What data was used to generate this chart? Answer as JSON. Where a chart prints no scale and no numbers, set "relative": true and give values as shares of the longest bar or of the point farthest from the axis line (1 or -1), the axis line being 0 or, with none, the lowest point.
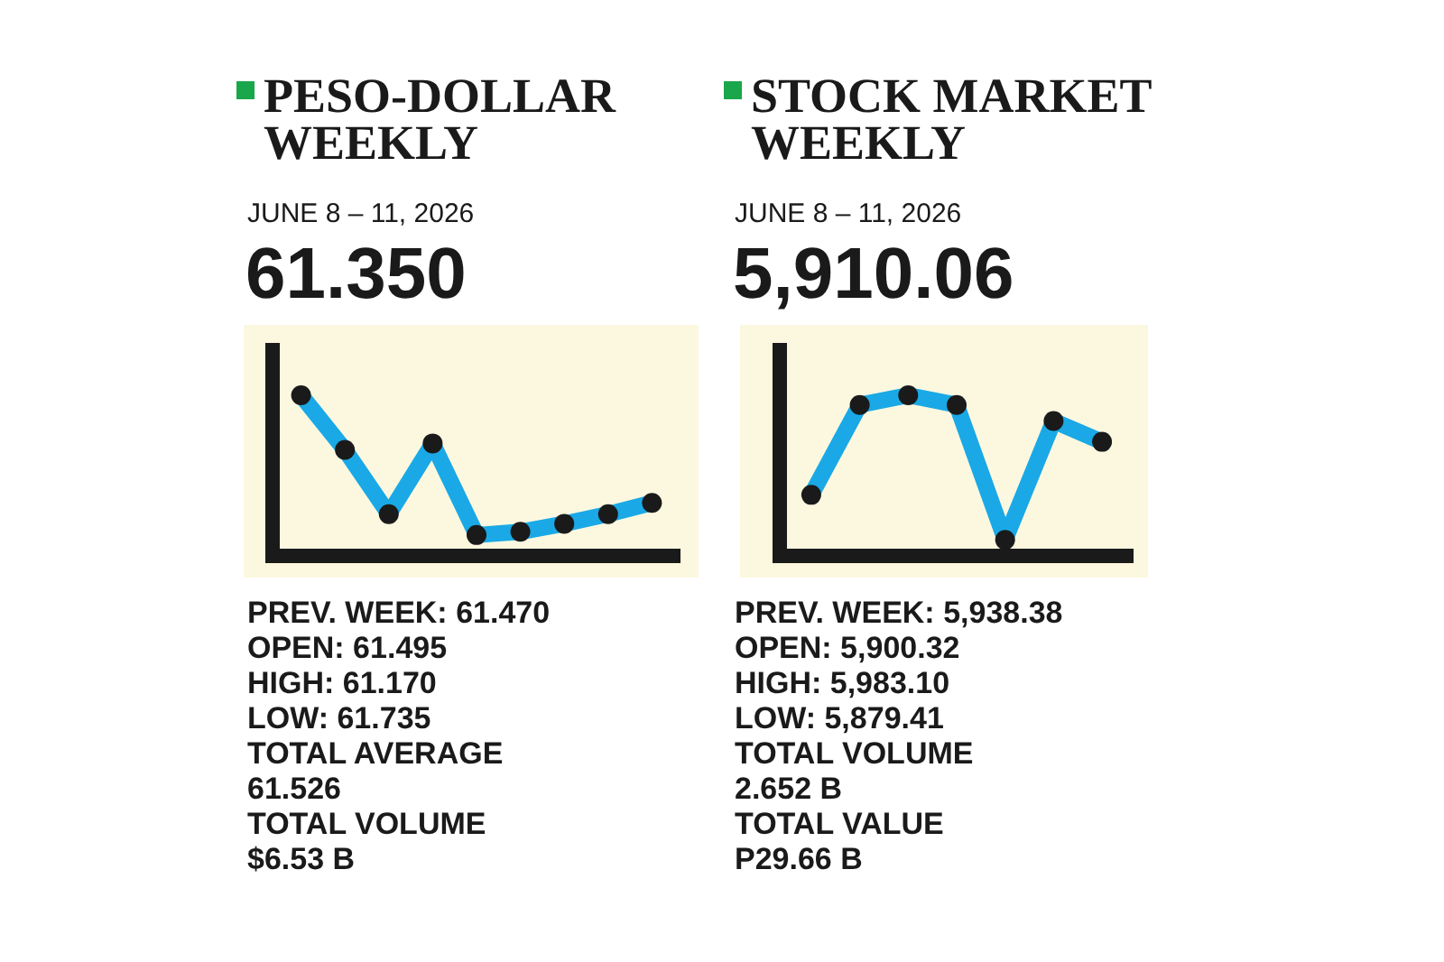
{
  "chart_data": [
    {
      "type": "line",
      "title": "PESO-DOLLAR WEEKLY",
      "subtitle": "JUNE 8 – 11, 2026",
      "annotations": [
        "61.350",
        "PREV. WEEK: 61.470",
        "OPEN: 61.495",
        "HIGH:  61.170",
        "LOW:  61.735",
        "TOTAL AVERAGE",
        "61.526",
        "TOTAL VOLUME",
        "$6.53 B"
      ],
      "categories": [
        null,
        null,
        null,
        null,
        null,
        null,
        null,
        null,
        null
      ],
      "relative": true,
      "marker": "circle",
      "series": [
        {
          "color": "#1aa9e6",
          "values": [
            1,
            0.66,
            0.26,
            0.7,
            0.13,
            0.15,
            0.2,
            0.26,
            0.33
          ]
        }
      ]
    },
    {
      "type": "line",
      "title": "STOCK MARKET WEEKLY",
      "subtitle": "JUNE 8 – 11, 2026",
      "annotations": [
        "5,910.06",
        "PREV. WEEK: 5,938.38",
        "OPEN: 5,900.32",
        "HIGH:  5,983.10",
        "LOW:  5,879.41",
        "TOTAL VOLUME",
        "2.652 B",
        "TOTAL VALUE",
        "P29.66 B"
      ],
      "categories": [
        null,
        null,
        null,
        null,
        null,
        null,
        null
      ],
      "relative": true,
      "marker": "circle",
      "series": [
        {
          "color": "#1aa9e6",
          "values": [
            0.38,
            0.94,
            1,
            0.94,
            0.1,
            0.84,
            0.71
          ]
        }
      ]
    }
  ]
}
